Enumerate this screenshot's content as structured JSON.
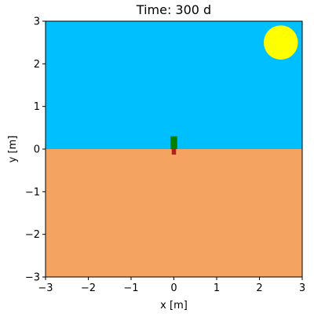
{
  "chart_data": {
    "type": "scatter",
    "title": "Time: 300 d",
    "xlabel": "x [m]",
    "ylabel": "y [m]",
    "xlim": [
      -3,
      3
    ],
    "ylim": [
      -3,
      3
    ],
    "xticks": [
      -3,
      -2,
      -1,
      0,
      1,
      2,
      3
    ],
    "yticks": [
      -3,
      -2,
      -1,
      0,
      1,
      2,
      3
    ],
    "xtick_labels": [
      "−3",
      "−2",
      "−1",
      "0",
      "1",
      "2",
      "3"
    ],
    "ytick_labels": [
      "−3",
      "−2",
      "−1",
      "0",
      "1",
      "2",
      "3"
    ],
    "grid": false,
    "regions": {
      "sky": {
        "y_range": [
          0,
          3
        ],
        "color": "#00bfff"
      },
      "soil": {
        "y_range": [
          -3,
          0
        ],
        "color": "#f4a460"
      }
    },
    "sun": {
      "x": 2.5,
      "y": 2.5,
      "radius": 0.4,
      "color": "#ffff00"
    },
    "plant": {
      "shoot": {
        "x_range": [
          -0.08,
          0.08
        ],
        "y_range": [
          0,
          0.3
        ],
        "color": "#008000"
      },
      "root": {
        "x_range": [
          -0.05,
          0.05
        ],
        "y_range": [
          -0.13,
          0
        ],
        "color": "#b22222"
      }
    }
  }
}
